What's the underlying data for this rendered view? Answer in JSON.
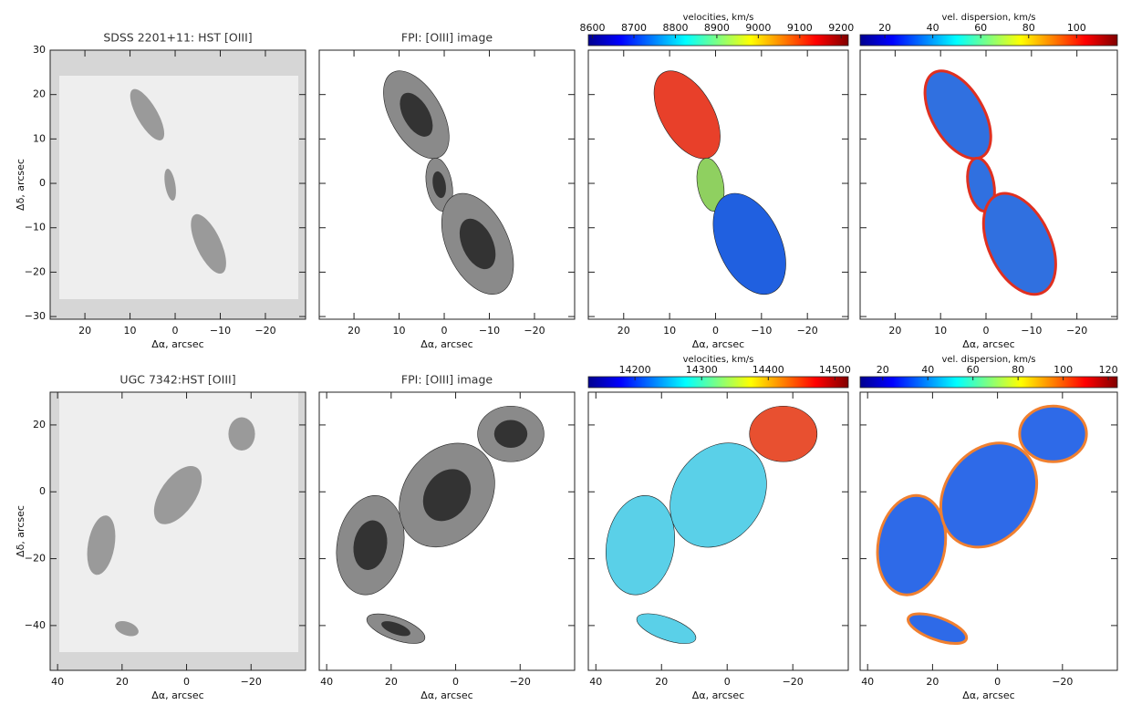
{
  "chart_data": [
    {
      "type": "image",
      "title": "SDSS 2201+11: HST [OIII]",
      "xlabel": "Δα, arcsec",
      "ylabel": "Δδ, arcsec",
      "xlim": [
        27.7,
        -28.9
      ],
      "ylim": [
        -30.6,
        30
      ],
      "xticks": [
        20,
        10,
        0,
        {
          "value": -10,
          "label": "−10"
        },
        {
          "value": -20,
          "label": "−20"
        }
      ],
      "yticks": [
        30,
        20,
        10,
        0,
        {
          "value": -10,
          "label": "−10"
        },
        {
          "value": -20,
          "label": "−20"
        },
        {
          "value": -30,
          "label": "−30"
        }
      ]
    },
    {
      "type": "image",
      "title": "FPI: [OIII] image",
      "xlabel": "Δα, arcsec",
      "xlim": [
        27.7,
        -28.9
      ],
      "ylim": [
        -30.6,
        30
      ],
      "xticks": [
        20,
        10,
        0,
        {
          "value": -10,
          "label": "−10"
        },
        {
          "value": -20,
          "label": "−20"
        }
      ]
    },
    {
      "type": "image",
      "xlabel": "Δα, arcsec",
      "xlim": [
        27.7,
        -28.9
      ],
      "ylim": [
        -30.6,
        30
      ],
      "xticks": [
        20,
        10,
        0,
        {
          "value": -10,
          "label": "−10"
        },
        {
          "value": -20,
          "label": "−20"
        }
      ],
      "colorbar": {
        "label": "velocities, km/s",
        "lim": [
          8590,
          9217
        ],
        "ticks": [
          8600,
          8700,
          8800,
          8900,
          9000,
          9100,
          9200
        ]
      }
    },
    {
      "type": "image",
      "xlabel": "Δα, arcsec",
      "xlim": [
        27.7,
        -28.9
      ],
      "ylim": [
        -30.6,
        30
      ],
      "xticks": [
        20,
        10,
        0,
        {
          "value": -10,
          "label": "−10"
        },
        {
          "value": -20,
          "label": "−20"
        }
      ],
      "colorbar": {
        "label": "vel. dispersion, km/s",
        "lim": [
          9.7,
          117
        ],
        "ticks": [
          20,
          40,
          60,
          80,
          100
        ]
      }
    },
    {
      "type": "image",
      "title": "UGC 7342:HST [OIII]",
      "xlabel": "Δα, arcsec",
      "ylabel": "Δδ, arcsec",
      "xlim": [
        42.3,
        -36.9
      ],
      "ylim": [
        -53.4,
        29.8
      ],
      "xticks": [
        40,
        20,
        0,
        {
          "value": -20,
          "label": "−20"
        }
      ],
      "yticks": [
        20,
        0,
        {
          "value": -20,
          "label": "−20"
        },
        {
          "value": -40,
          "label": "−40"
        }
      ]
    },
    {
      "type": "image",
      "title": "FPI: [OIII] image",
      "xlabel": "Δα, arcsec",
      "xlim": [
        42.3,
        -36.9
      ],
      "ylim": [
        -53.4,
        29.8
      ],
      "xticks": [
        40,
        20,
        0,
        {
          "value": -20,
          "label": "−20"
        }
      ]
    },
    {
      "type": "image",
      "xlabel": "Δα, arcsec",
      "xlim": [
        42.3,
        -36.9
      ],
      "ylim": [
        -53.4,
        29.8
      ],
      "xticks": [
        40,
        20,
        0,
        {
          "value": -20,
          "label": "−20"
        }
      ],
      "colorbar": {
        "label": "velocities, km/s",
        "lim": [
          14130,
          14520
        ],
        "ticks": [
          14200,
          14300,
          14400,
          14500
        ]
      }
    },
    {
      "type": "image",
      "xlabel": "Δα, arcsec",
      "xlim": [
        42.3,
        -36.9
      ],
      "ylim": [
        -53.4,
        29.8
      ],
      "xticks": [
        40,
        20,
        0,
        {
          "value": -20,
          "label": "−20"
        }
      ],
      "colorbar": {
        "label": "vel. dispersion, km/s",
        "lim": [
          10,
          124
        ],
        "ticks": [
          20,
          40,
          60,
          80,
          100,
          120
        ]
      }
    }
  ]
}
